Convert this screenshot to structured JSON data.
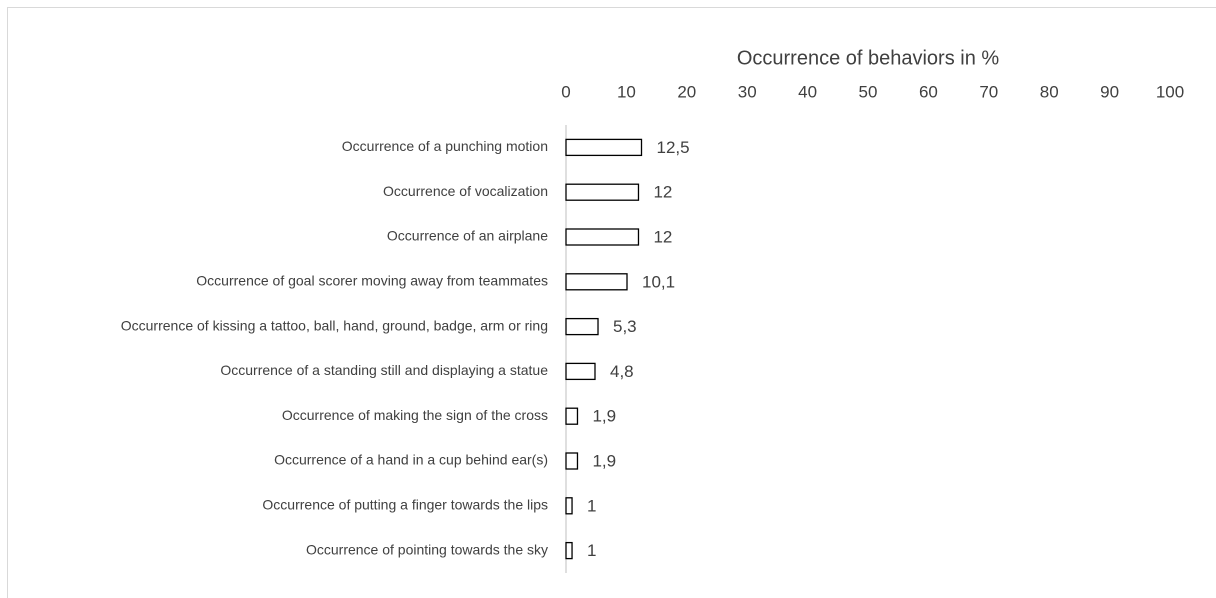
{
  "chart_data": {
    "type": "bar",
    "orientation": "horizontal",
    "xlabel": "Occurrence of behaviors in %",
    "categories": [
      "Occurrence of a punching motion",
      "Occurrence of vocalization",
      "Occurrence of an airplane",
      "Occurrence of goal scorer moving away from teammates",
      "Occurrence of kissing a tattoo, ball, hand, ground, badge, arm or ring",
      "Occurrence of a standing still and displaying a statue",
      "Occurrence of making the sign of the cross",
      "Occurrence of a hand in a cup behind ear(s)",
      "Occurrence of putting a finger towards the lips",
      "Occurrence of pointing towards the sky"
    ],
    "values": [
      12.5,
      12,
      12,
      10.1,
      5.3,
      4.8,
      1.9,
      1.9,
      1,
      1
    ],
    "value_labels": [
      "12,5",
      "12",
      "12",
      "10,1",
      "5,3",
      "4,8",
      "1,9",
      "1,9",
      "1",
      "1"
    ],
    "color": "#ffffff",
    "edgecolor": "#000000",
    "xlim": [
      0,
      100
    ],
    "xticks": [
      0,
      10,
      20,
      30,
      40,
      50,
      60,
      70,
      80,
      90,
      100
    ]
  }
}
